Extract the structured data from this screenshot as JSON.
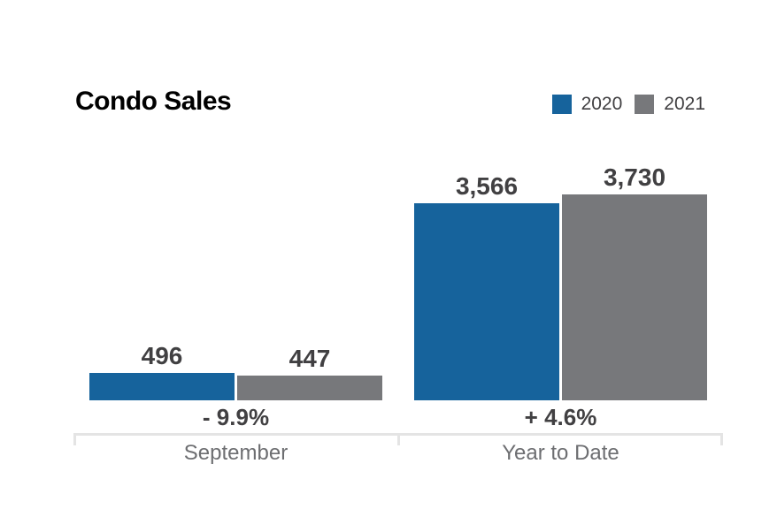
{
  "title": "Condo Sales",
  "legend": {
    "items": [
      {
        "label": "2020",
        "color": "#16639c"
      },
      {
        "label": "2021",
        "color": "#77787b"
      }
    ]
  },
  "colors": {
    "series_2020": "#16639c",
    "series_2021": "#77787b",
    "value_text": "#414042",
    "category_text": "#6d6e71",
    "axis_bracket": "#e4e4e4"
  },
  "chart_data": {
    "type": "bar",
    "title": "Condo Sales",
    "categories": [
      "September",
      "Year to Date"
    ],
    "series": [
      {
        "name": "2020",
        "color": "#16639c",
        "values": [
          496,
          3566
        ]
      },
      {
        "name": "2021",
        "color": "#77787b",
        "values": [
          447,
          3730
        ]
      }
    ],
    "value_labels": [
      [
        "496",
        "447"
      ],
      [
        "3,566",
        "3,730"
      ]
    ],
    "change_labels": [
      "- 9.9%",
      "+ 4.6%"
    ],
    "ylim": [
      0,
      3730
    ],
    "grid": false,
    "legend_position": "top-right"
  }
}
